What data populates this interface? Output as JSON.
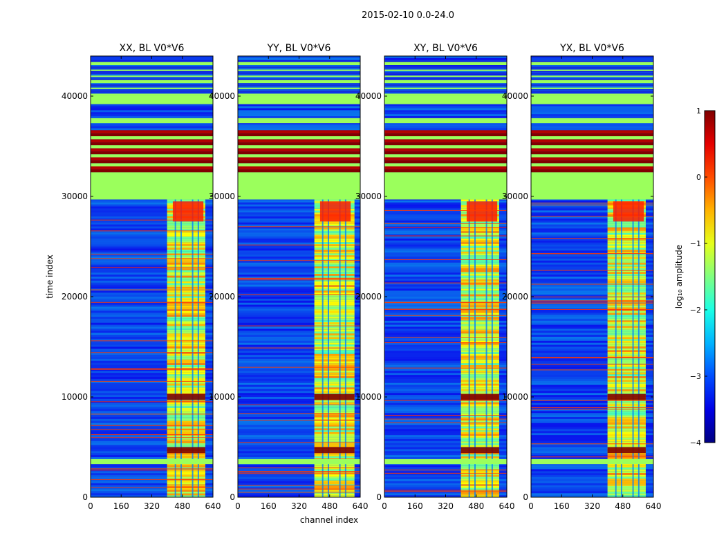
{
  "chart_data": {
    "type": "heatmap",
    "suptitle": "2015-02-10 0.0-24.0",
    "xlabel": "channel index",
    "ylabel": "time index",
    "xlim": [
      0,
      640
    ],
    "ylim": [
      0,
      44000
    ],
    "xticks": [
      0,
      160,
      320,
      480,
      640
    ],
    "yticks": [
      0,
      10000,
      20000,
      30000,
      40000
    ],
    "panels": [
      {
        "title": "XX, BL V0*V6",
        "band_channels": [
          400,
          600
        ]
      },
      {
        "title": "YY, BL V0*V6",
        "band_channels": [
          400,
          610
        ]
      },
      {
        "title": "XY, BL V0*V6",
        "band_channels": [
          400,
          600
        ]
      },
      {
        "title": "YX, BL V0*V6",
        "band_channels": [
          400,
          600
        ]
      }
    ],
    "colorbar": {
      "label": "log₁₀ amplitude",
      "range": [
        -4,
        1
      ],
      "ticks": [
        1,
        0,
        -1,
        -2,
        -3,
        -4
      ],
      "tick_labels": [
        "1",
        "0",
        "−1",
        "−2",
        "−3",
        "−4"
      ],
      "colormap": "jet"
    },
    "flagged_time_ranges": [
      [
        29700,
        32400
      ],
      [
        37300,
        37800
      ],
      [
        39200,
        40100
      ],
      [
        41400,
        41700
      ],
      [
        43200,
        43400
      ],
      [
        3300,
        3800
      ]
    ],
    "saturated_time_ranges": [
      [
        32400,
        36600
      ],
      [
        4400,
        5000
      ],
      [
        9700,
        10300
      ]
    ]
  },
  "colors": {
    "flag_green": "#9bff5c",
    "dark_red": "#800000",
    "background_blue": "#1530d8"
  }
}
